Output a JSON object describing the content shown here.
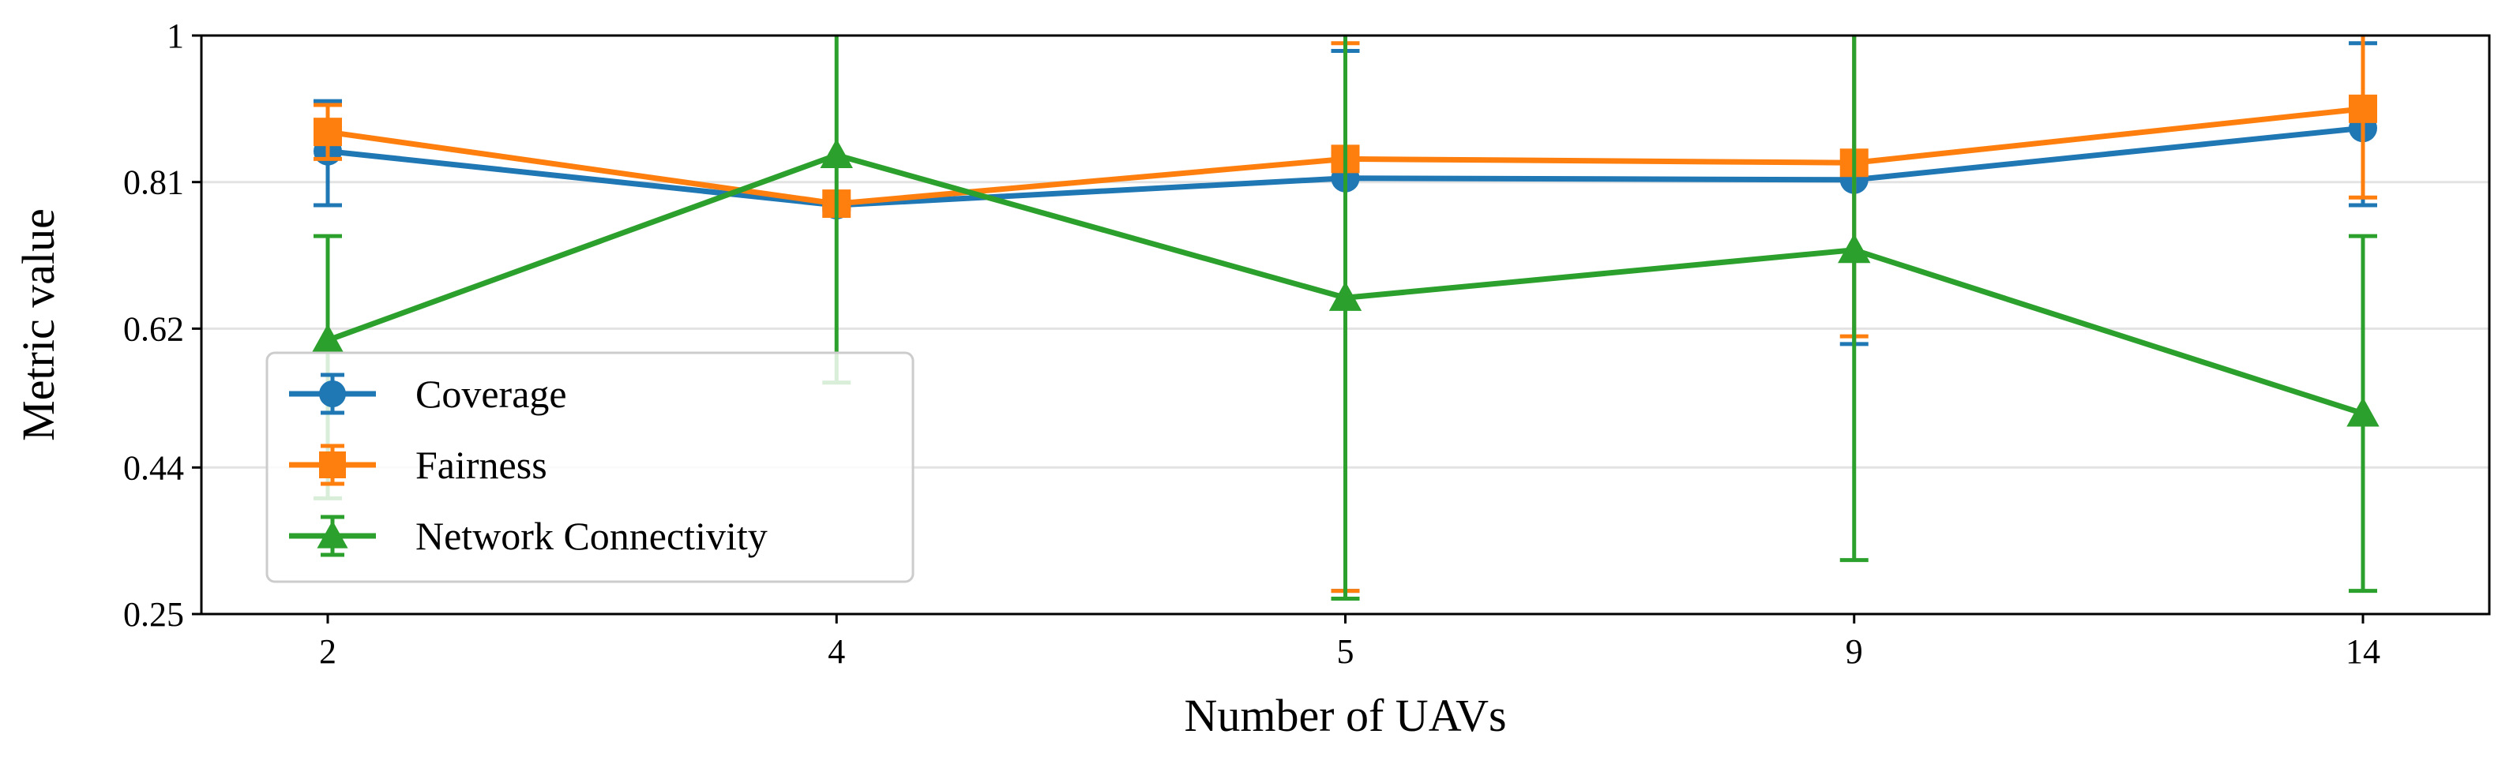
{
  "chart_data": {
    "type": "line",
    "title": "",
    "xlabel": "Number of UAVs",
    "ylabel": "Metric value",
    "categories": [
      "2",
      "4",
      "5",
      "9",
      "14"
    ],
    "yticks": [
      "0.25",
      "0.44",
      "0.62",
      "0.81",
      "1"
    ],
    "ylim": [
      0.25,
      1.0
    ],
    "grid": true,
    "legend_position": "lower-left",
    "series": [
      {
        "name": "Coverage",
        "color": "#1f77b4",
        "marker": "circle",
        "values": [
          0.85,
          0.78,
          0.815,
          0.813,
          0.88
        ],
        "error_low": [
          0.78,
          0.775,
          0.28,
          0.6,
          0.78
        ],
        "error_high": [
          0.915,
          0.785,
          0.98,
          1.0,
          0.99
        ]
      },
      {
        "name": "Fairness",
        "color": "#ff7f0e",
        "marker": "square",
        "values": [
          0.875,
          0.782,
          0.84,
          0.835,
          0.905
        ],
        "error_low": [
          0.84,
          0.778,
          0.28,
          0.61,
          0.79
        ],
        "error_high": [
          0.91,
          0.786,
          0.99,
          1.0,
          1.0
        ]
      },
      {
        "name": "Network Connectivity",
        "color": "#2ca02c",
        "marker": "triangle",
        "values": [
          0.605,
          0.845,
          0.66,
          0.722,
          0.51
        ],
        "error_low": [
          0.4,
          0.55,
          0.27,
          0.32,
          0.28
        ],
        "error_high": [
          0.74,
          1.0,
          1.0,
          1.0,
          0.74
        ]
      }
    ]
  }
}
